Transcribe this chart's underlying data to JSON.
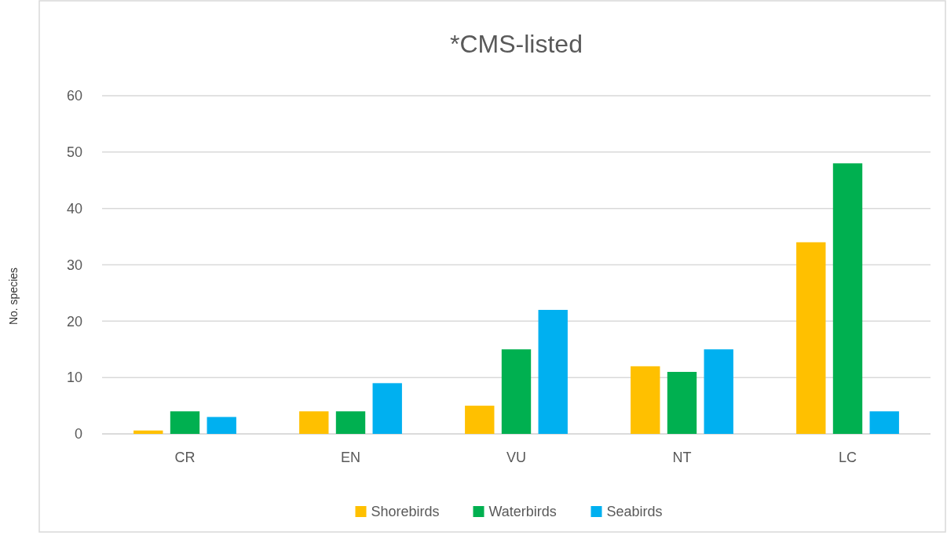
{
  "chart_data": {
    "type": "bar",
    "title": "*CMS-listed",
    "ylabel": "No. species",
    "categories": [
      "CR",
      "EN",
      "VU",
      "NT",
      "LC"
    ],
    "series": [
      {
        "name": "Shorebirds",
        "color": "#ffc000",
        "values": [
          0.6,
          4,
          5,
          12,
          34
        ]
      },
      {
        "name": "Waterbirds",
        "color": "#00b050",
        "values": [
          4,
          4,
          15,
          11,
          48
        ]
      },
      {
        "name": "Seabirds",
        "color": "#00b0f0",
        "values": [
          3,
          9,
          22,
          15,
          4
        ]
      }
    ],
    "ylim": [
      0,
      60
    ],
    "yticks": [
      0,
      10,
      20,
      30,
      40,
      50,
      60
    ],
    "grid": "y",
    "legend": "bottom"
  }
}
